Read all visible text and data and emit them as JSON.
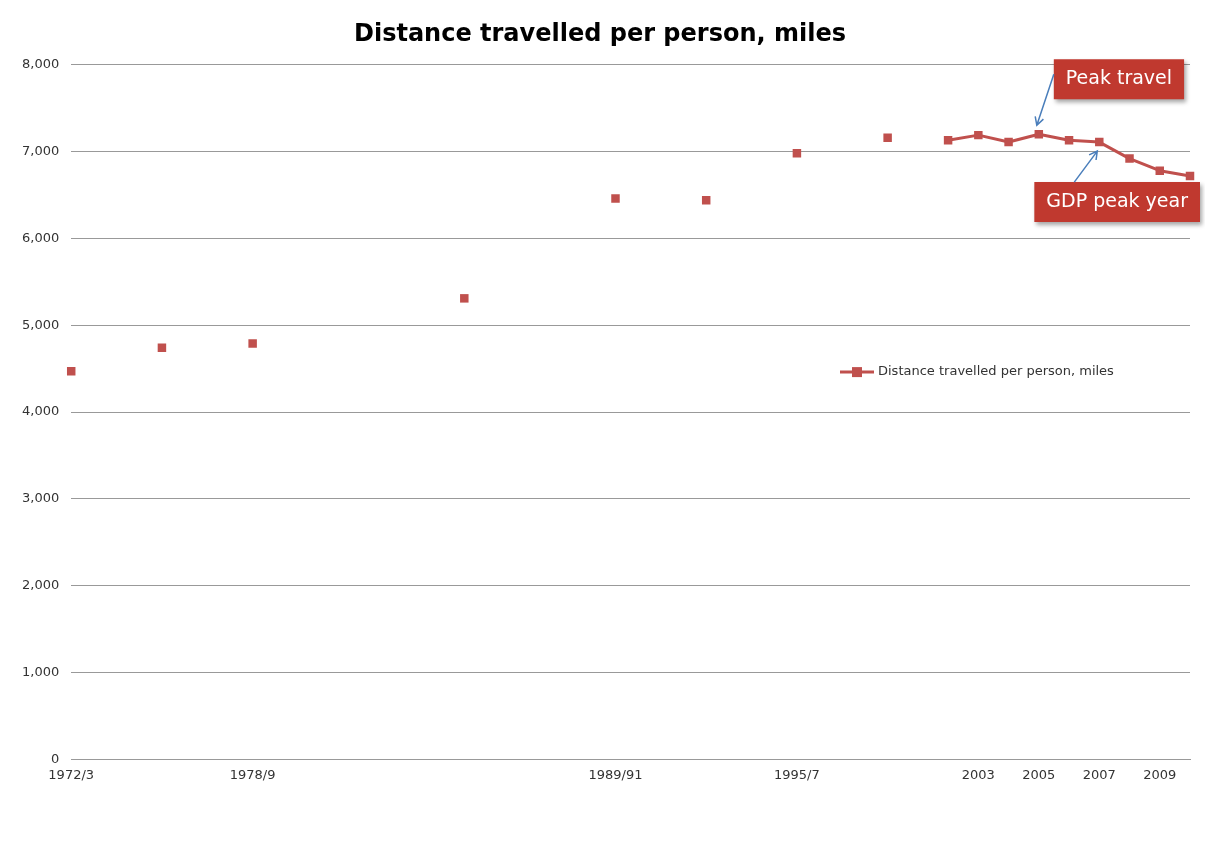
{
  "chart_data": {
    "type": "line",
    "title": "Distance travelled per person, miles",
    "categories": [
      "1972/3",
      null,
      null,
      null,
      null,
      null,
      "1978/9",
      null,
      null,
      null,
      null,
      null,
      null,
      null,
      null,
      null,
      null,
      null,
      "1989/91",
      null,
      null,
      null,
      null,
      null,
      "1995/7",
      null,
      null,
      null,
      null,
      null,
      "2003",
      null,
      "2005",
      null,
      "2007",
      null,
      "2009",
      null
    ],
    "series": [
      {
        "name": "Distance travelled per person, miles",
        "color": "#c0504d",
        "values": [
          4470,
          null,
          null,
          4740,
          null,
          null,
          4790,
          null,
          null,
          null,
          null,
          null,
          null,
          5310,
          null,
          null,
          null,
          null,
          6460,
          null,
          null,
          6440,
          null,
          null,
          6980,
          null,
          null,
          7160,
          null,
          7130,
          7190,
          7110,
          7200,
          7130,
          7110,
          6920,
          6780,
          6720
        ]
      }
    ],
    "ylim": [
      0,
      8000
    ],
    "yticks": [
      {
        "value": 0,
        "label": "0"
      },
      {
        "value": 1000,
        "label": "1,000"
      },
      {
        "value": 2000,
        "label": "2,000"
      },
      {
        "value": 3000,
        "label": "3,000"
      },
      {
        "value": 4000,
        "label": "4,000"
      },
      {
        "value": 5000,
        "label": "5,000"
      },
      {
        "value": 6000,
        "label": "6,000"
      },
      {
        "value": 7000,
        "label": "7,000"
      },
      {
        "value": 8000,
        "label": "8,000"
      }
    ],
    "grid": "y",
    "legend": "right",
    "marker": "square",
    "line_style": "solid",
    "annotations": [
      {
        "text": "Peak travel",
        "x": "2005",
        "y": 7200
      },
      {
        "text": "GDP peak year",
        "x": "2007",
        "y": 7110
      }
    ]
  }
}
